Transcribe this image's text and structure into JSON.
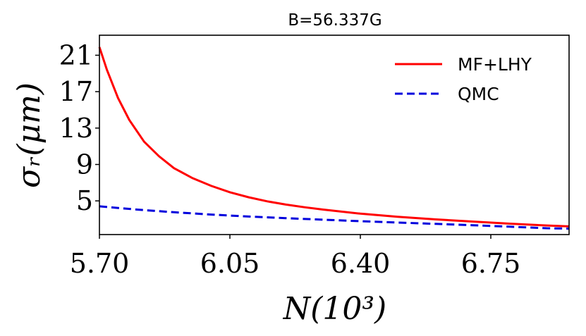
{
  "chart_data": {
    "type": "line",
    "title": "B=56.337G",
    "xlabel": "N(10³)",
    "ylabel": "σᵣ(μm)",
    "xlim": [
      5.7,
      6.96
    ],
    "ylim": [
      1.3,
      23.2
    ],
    "xticks": [
      5.7,
      6.05,
      6.4,
      6.75
    ],
    "xtick_labels": [
      "5.70",
      "6.05",
      "6.40",
      "6.75"
    ],
    "yticks": [
      5,
      9,
      13,
      17,
      21
    ],
    "ytick_labels": [
      "5",
      "9",
      "13",
      "17",
      "21"
    ],
    "grid": false,
    "legend_position": "top-right",
    "series": [
      {
        "name": "MF+LHY",
        "color": "#ff0000",
        "dash": "solid",
        "x": [
          5.7,
          5.72,
          5.75,
          5.78,
          5.82,
          5.86,
          5.9,
          5.95,
          6.0,
          6.05,
          6.1,
          6.15,
          6.2,
          6.25,
          6.3,
          6.4,
          6.5,
          6.6,
          6.7,
          6.8,
          6.9,
          6.96
        ],
        "values": [
          21.9,
          19.4,
          16.3,
          13.9,
          11.5,
          9.9,
          8.6,
          7.5,
          6.65,
          5.95,
          5.4,
          4.95,
          4.6,
          4.3,
          4.05,
          3.6,
          3.25,
          2.97,
          2.73,
          2.5,
          2.3,
          2.2
        ]
      },
      {
        "name": "QMC",
        "color": "#0000dd",
        "dash": "dashed",
        "x": [
          5.7,
          5.8,
          5.9,
          6.0,
          6.1,
          6.2,
          6.3,
          6.4,
          6.5,
          6.6,
          6.7,
          6.8,
          6.9,
          6.96
        ],
        "values": [
          4.4,
          4.05,
          3.75,
          3.5,
          3.28,
          3.1,
          2.93,
          2.77,
          2.62,
          2.48,
          2.33,
          2.17,
          2.0,
          1.95
        ]
      }
    ]
  }
}
